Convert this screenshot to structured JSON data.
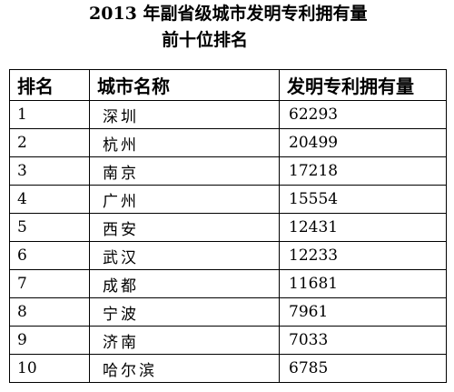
{
  "title": {
    "line1": "2013 年副省级城市发明专利拥有量",
    "line2": "前十位排名"
  },
  "table": {
    "headers": [
      "排名",
      "城市名称",
      "发明专利拥有量"
    ],
    "rows": [
      {
        "rank": "1",
        "city": "深圳",
        "count": "62293"
      },
      {
        "rank": "2",
        "city": "杭州",
        "count": "20499"
      },
      {
        "rank": "3",
        "city": "南京",
        "count": "17218"
      },
      {
        "rank": "4",
        "city": "广州",
        "count": "15554"
      },
      {
        "rank": "5",
        "city": "西安",
        "count": "12431"
      },
      {
        "rank": "6",
        "city": "武汉",
        "count": "12233"
      },
      {
        "rank": "7",
        "city": "成都",
        "count": "11681"
      },
      {
        "rank": "8",
        "city": "宁波",
        "count": "7961"
      },
      {
        "rank": "9",
        "city": "济南",
        "count": "7033"
      },
      {
        "rank": "10",
        "city": "哈尔滨",
        "count": "6785"
      }
    ]
  }
}
